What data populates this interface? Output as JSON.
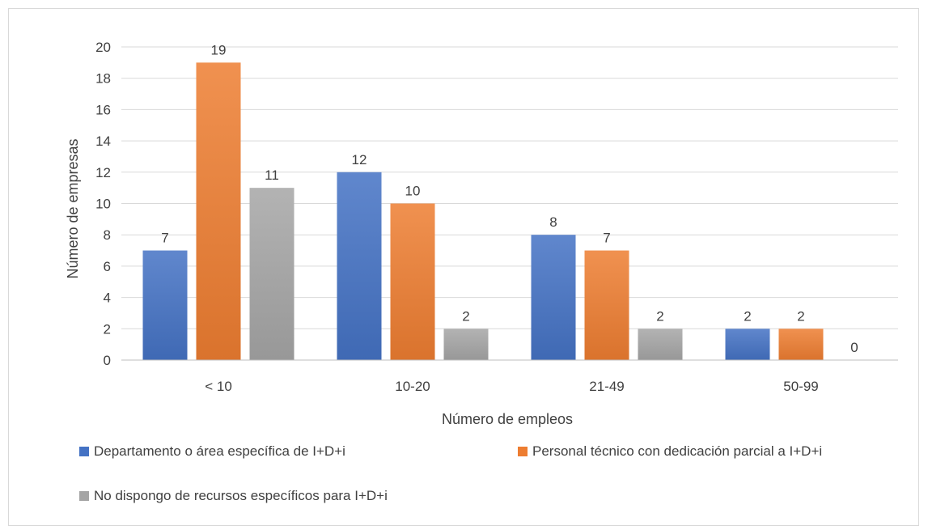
{
  "chart_data": {
    "type": "bar",
    "categories": [
      "< 10",
      "10-20",
      "21-49",
      "50-99"
    ],
    "series": [
      {
        "name": "Departamento o área específica de I+D+i",
        "values": [
          7,
          12,
          8,
          2
        ],
        "color": "#4472c4"
      },
      {
        "name": "Personal técnico con dedicación parcial a I+D+i",
        "values": [
          19,
          10,
          7,
          2
        ],
        "color": "#ed7d31"
      },
      {
        "name": "No dispongo de recursos específicos para I+D+i",
        "values": [
          11,
          2,
          2,
          0
        ],
        "color": "#a5a5a5"
      }
    ],
    "xlabel": "Número de empleos",
    "ylabel": "Número de empresas",
    "ylim": [
      0,
      20
    ],
    "yticks": [
      0,
      2,
      4,
      6,
      8,
      10,
      12,
      14,
      16,
      18,
      20
    ],
    "grid": true,
    "legend_position": "bottom"
  }
}
